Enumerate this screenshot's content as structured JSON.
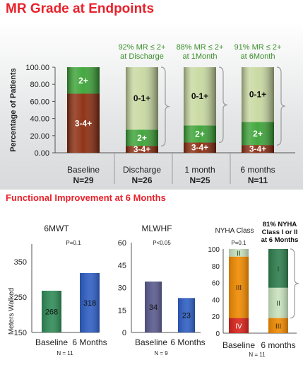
{
  "page": {
    "title": "MR Grade at Endpoints",
    "subtitle": "Functional Improvement at 6 Months"
  },
  "colors": {
    "title_red": "#e8212b",
    "green_2plus": "#3aa335",
    "dark_red_3_4plus": "#8b2a0c",
    "pale_green_0_1plus": "#c8d9a0",
    "bar_green": "#2f8b57",
    "bar_blue": "#2f5fc4",
    "bar_purple": "#5a5a8e",
    "nyha_red": "#d8231b",
    "nyha_orange": "#f08a00",
    "nyha_light_green": "#c9e3bf",
    "nyha_dark_green": "#2f7d4e"
  },
  "chart_data": [
    {
      "type": "bar",
      "stacked": true,
      "title": "MR Grade at Endpoints",
      "ylabel": "Percentage of Patients",
      "ylim": [
        0,
        100
      ],
      "yticks": [
        "0.00",
        "20.00",
        "40.00",
        "60.00",
        "80.00",
        "100.00"
      ],
      "categories": [
        "Baseline",
        "Discharge",
        "1 month",
        "6 months"
      ],
      "n_labels": [
        "N=29",
        "N=26",
        "N=25",
        "N=11"
      ],
      "annotations": [
        "",
        "92% MR ≤ 2+\nat Discharge",
        "88% MR ≤ 2+\nat 1Month",
        "91% MR ≤ 2+\nat 6Month"
      ],
      "series": [
        {
          "name": "3-4+",
          "values": [
            69,
            8,
            12,
            9
          ]
        },
        {
          "name": "2+",
          "values": [
            31,
            19,
            20,
            27
          ]
        },
        {
          "name": "0-1+",
          "values": [
            0,
            73,
            68,
            64
          ]
        }
      ]
    },
    {
      "type": "bar",
      "title": "6MWT",
      "p_value": "P=0.1",
      "ylabel": "Meters Walked",
      "ylim": [
        150,
        400
      ],
      "yticks": [
        "150",
        "250",
        "350"
      ],
      "categories": [
        "Baseline",
        "6 Months"
      ],
      "values": [
        268,
        318
      ],
      "n_label": "N = 11"
    },
    {
      "type": "bar",
      "title": "MLWHF",
      "p_value": "P<0.05",
      "ylim": [
        0,
        60
      ],
      "yticks": [
        "0",
        "15",
        "30",
        "45",
        "60"
      ],
      "categories": [
        "Baseline",
        "6 Months"
      ],
      "values": [
        34,
        23
      ],
      "n_label": "N = 9"
    },
    {
      "type": "bar",
      "stacked": true,
      "title": "NYHA Class",
      "p_value": "P=0.1",
      "callout": "81% NYHA\nClass I or II\nat 6 Months",
      "ylim": [
        0,
        100
      ],
      "yticks": [
        "0",
        "20",
        "40",
        "60",
        "80",
        "100"
      ],
      "categories": [
        "Baseline",
        "6 months"
      ],
      "series": [
        {
          "name": "IV",
          "values": [
            18,
            0
          ]
        },
        {
          "name": "III",
          "values": [
            73,
            18
          ]
        },
        {
          "name": "II",
          "values": [
            9,
            36
          ]
        },
        {
          "name": "I",
          "values": [
            0,
            46
          ]
        }
      ],
      "n_label": "N = 11"
    }
  ]
}
